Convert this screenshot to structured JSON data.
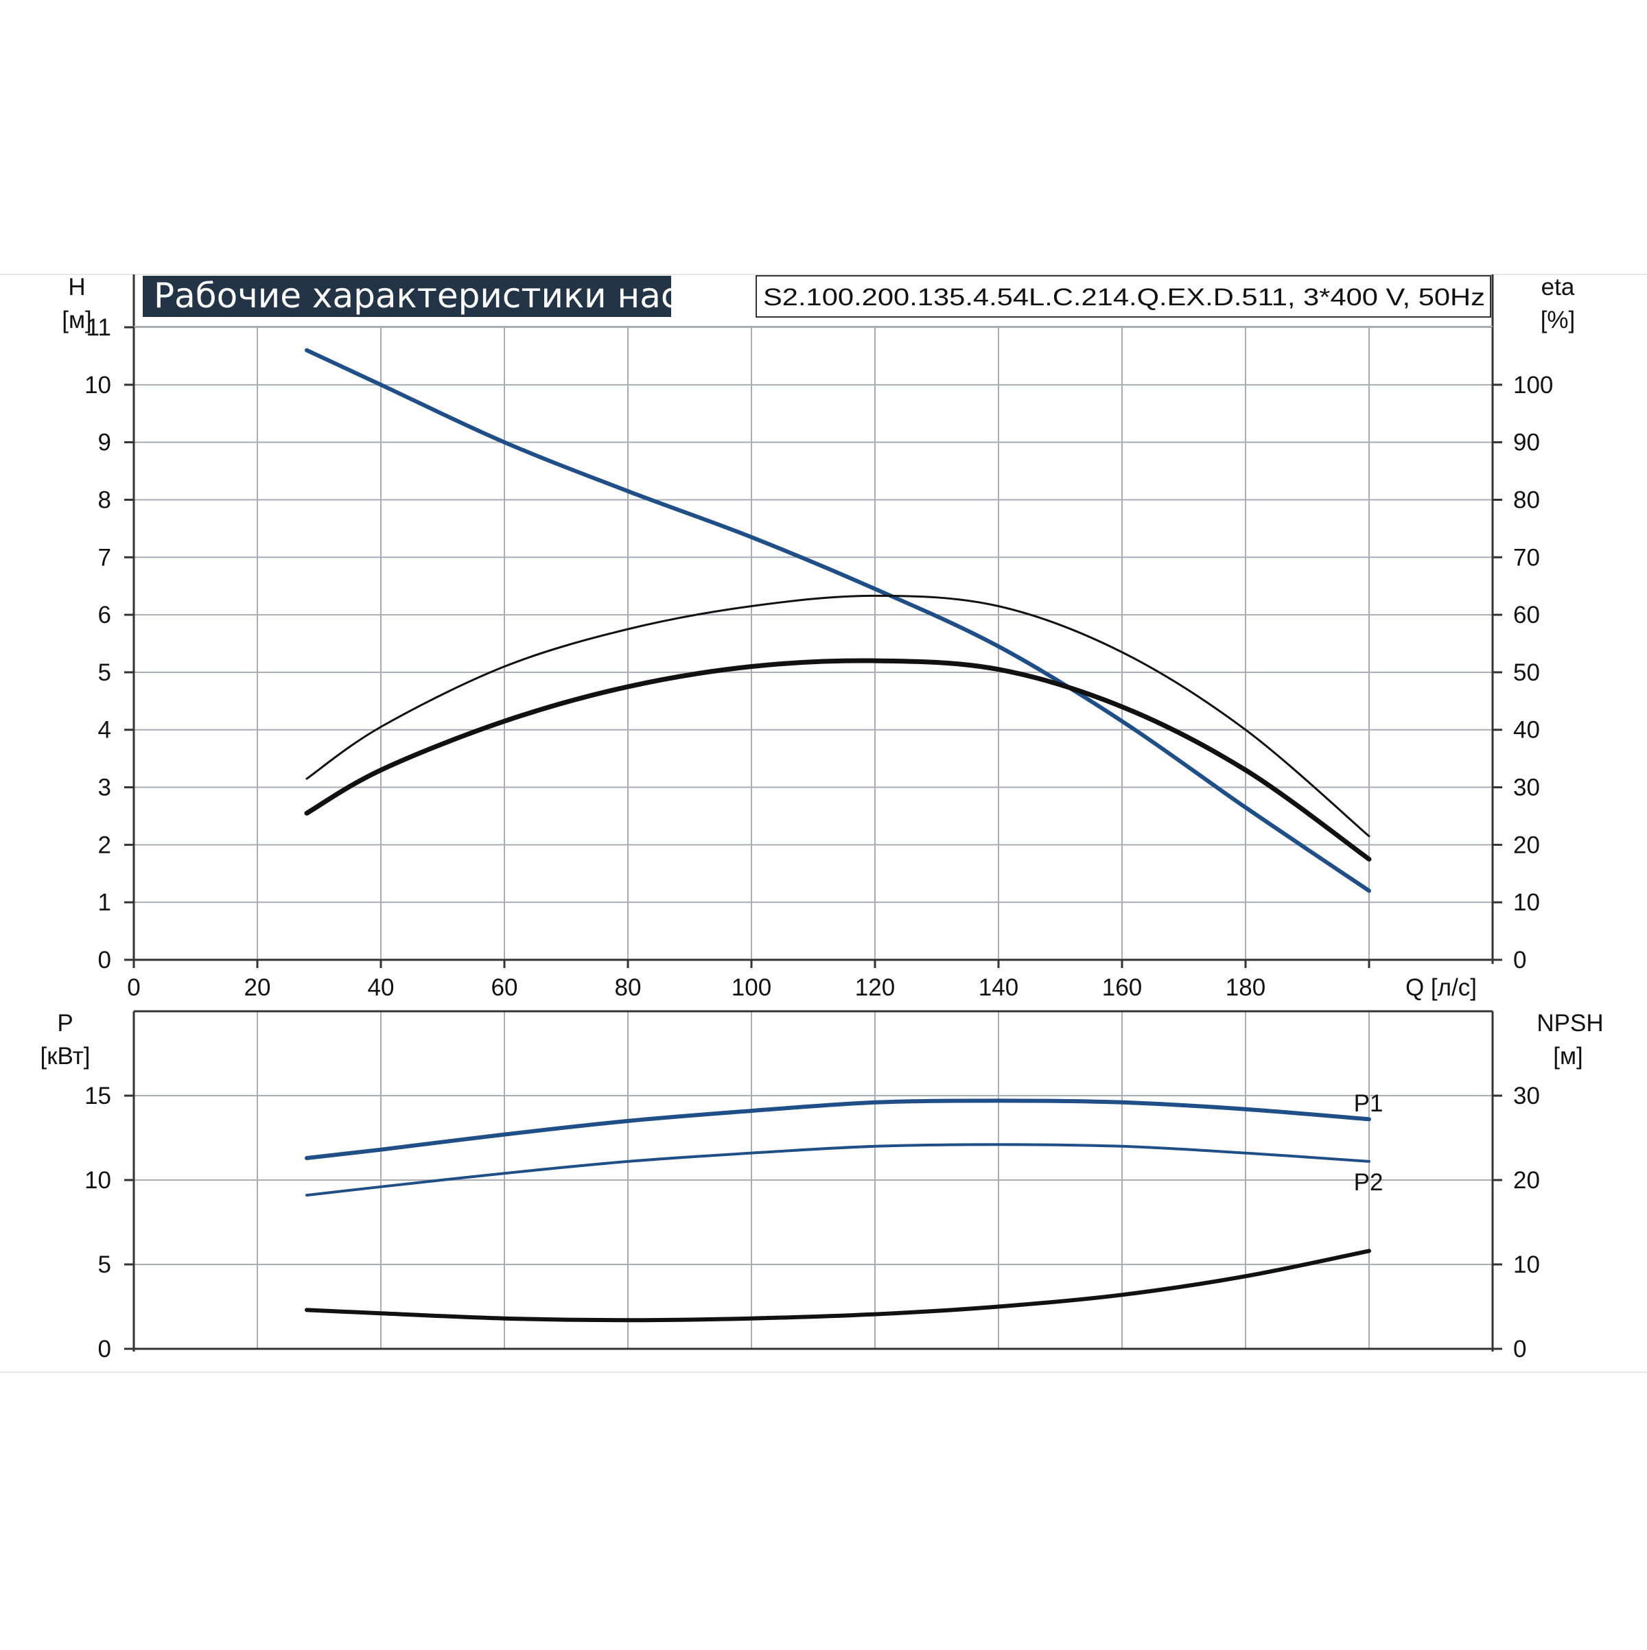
{
  "colors": {
    "blue": "#1f4f86",
    "black": "#111111",
    "grid": "#a8adb3",
    "axis": "#333333",
    "title_bg": "#243447"
  },
  "chart_data": [
    {
      "type": "line",
      "title": "Рабочие характеристики насоса",
      "subtitle": "S2.100.200.135.4.54L.C.214.Q.EX.D.511, 3*400 V, 50Hz",
      "xlabel": "Q [л/с]",
      "ylabel": "H",
      "ylabel_unit": "[м]",
      "y2label": "eta",
      "y2label_unit": "[%]",
      "xlim": [
        0,
        220
      ],
      "ylim": [
        0,
        11
      ],
      "y2lim": [
        0,
        110
      ],
      "x_ticks": [
        "0",
        "20",
        "40",
        "60",
        "80",
        "100",
        "120",
        "140",
        "160",
        "180"
      ],
      "y_ticks": [
        "0",
        "1",
        "2",
        "3",
        "4",
        "5",
        "6",
        "7",
        "8",
        "9",
        "10",
        "11"
      ],
      "y2_ticks": [
        "0",
        "10",
        "20",
        "30",
        "40",
        "50",
        "60",
        "70",
        "80",
        "90",
        "100"
      ],
      "grid": true,
      "series": [
        {
          "axis": "left",
          "color": "blue",
          "points": [
            [
              28,
              10.6
            ],
            [
              40,
              10.0
            ],
            [
              60,
              9.0
            ],
            [
              80,
              8.15
            ],
            [
              100,
              7.35
            ],
            [
              120,
              6.45
            ],
            [
              140,
              5.45
            ],
            [
              160,
              4.15
            ],
            [
              180,
              2.65
            ],
            [
              200,
              1.2
            ]
          ]
        },
        {
          "axis": "right",
          "color": "black",
          "points": [
            [
              28,
              31.5
            ],
            [
              40,
              40.5
            ],
            [
              60,
              51.0
            ],
            [
              80,
              57.5
            ],
            [
              100,
              61.5
            ],
            [
              120,
              63.3
            ],
            [
              140,
              61.5
            ],
            [
              160,
              53.5
            ],
            [
              180,
              40.0
            ],
            [
              200,
              21.5
            ]
          ]
        },
        {
          "axis": "left",
          "color": "black",
          "points": [
            [
              28,
              2.55
            ],
            [
              40,
              3.3
            ],
            [
              60,
              4.15
            ],
            [
              80,
              4.75
            ],
            [
              100,
              5.1
            ],
            [
              120,
              5.2
            ],
            [
              140,
              5.05
            ],
            [
              160,
              4.4
            ],
            [
              180,
              3.3
            ],
            [
              200,
              1.75
            ]
          ]
        }
      ]
    },
    {
      "type": "line",
      "xlim": [
        0,
        220
      ],
      "ylim": [
        0,
        20
      ],
      "y2lim": [
        0,
        40
      ],
      "ylabel": "P",
      "ylabel_unit": "[кВт]",
      "y2label": "NPSH",
      "y2label_unit": "[м]",
      "y_ticks": [
        "0",
        "5",
        "10",
        "15"
      ],
      "y2_ticks": [
        "0",
        "10",
        "20",
        "30"
      ],
      "grid": true,
      "series": [
        {
          "name": "P1",
          "axis": "left",
          "color": "blue",
          "points": [
            [
              28,
              11.3
            ],
            [
              40,
              11.8
            ],
            [
              60,
              12.7
            ],
            [
              80,
              13.5
            ],
            [
              100,
              14.1
            ],
            [
              120,
              14.6
            ],
            [
              140,
              14.7
            ],
            [
              160,
              14.6
            ],
            [
              180,
              14.2
            ],
            [
              200,
              13.6
            ]
          ]
        },
        {
          "name": "P2",
          "axis": "left",
          "color": "blue",
          "points": [
            [
              28,
              9.1
            ],
            [
              40,
              9.6
            ],
            [
              60,
              10.4
            ],
            [
              80,
              11.1
            ],
            [
              100,
              11.6
            ],
            [
              120,
              12.0
            ],
            [
              140,
              12.1
            ],
            [
              160,
              12.0
            ],
            [
              180,
              11.6
            ],
            [
              200,
              11.1
            ]
          ]
        },
        {
          "axis": "right",
          "color": "black",
          "points": [
            [
              28,
              4.6
            ],
            [
              40,
              4.2
            ],
            [
              60,
              3.6
            ],
            [
              80,
              3.4
            ],
            [
              100,
              3.6
            ],
            [
              120,
              4.1
            ],
            [
              140,
              5.0
            ],
            [
              160,
              6.4
            ],
            [
              180,
              8.6
            ],
            [
              200,
              11.6
            ]
          ]
        }
      ]
    }
  ]
}
